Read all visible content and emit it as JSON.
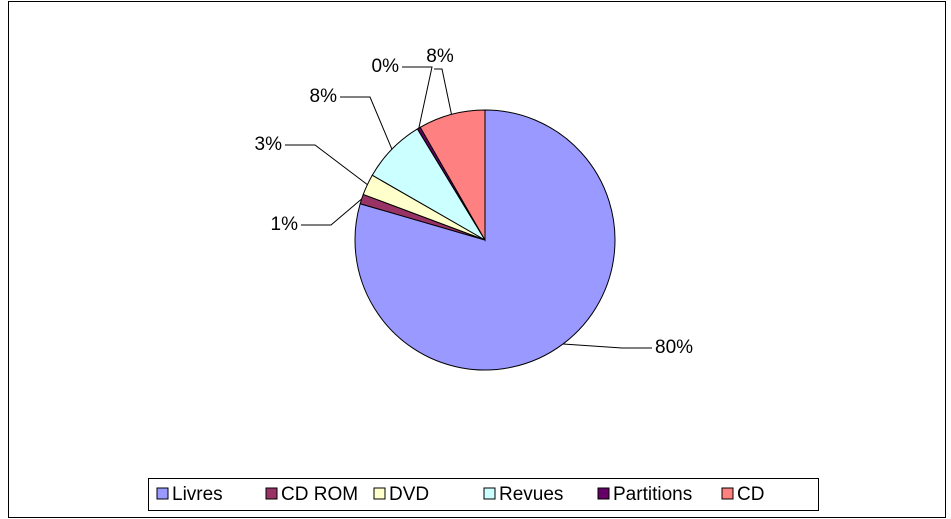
{
  "chart_data": {
    "type": "pie",
    "categories": [
      "Livres",
      "CD ROM",
      "DVD",
      "Revues",
      "Partitions",
      "CD"
    ],
    "values": [
      79.5,
      1.2,
      2.6,
      8.0,
      0.4,
      8.3
    ],
    "value_labels": [
      "80%",
      "1%",
      "3%",
      "8%",
      "0%",
      "8%"
    ],
    "colors": [
      "#9999ff",
      "#993366",
      "#ffffcc",
      "#ccffff",
      "#660066",
      "#ff8080"
    ],
    "legend": "bottom"
  }
}
